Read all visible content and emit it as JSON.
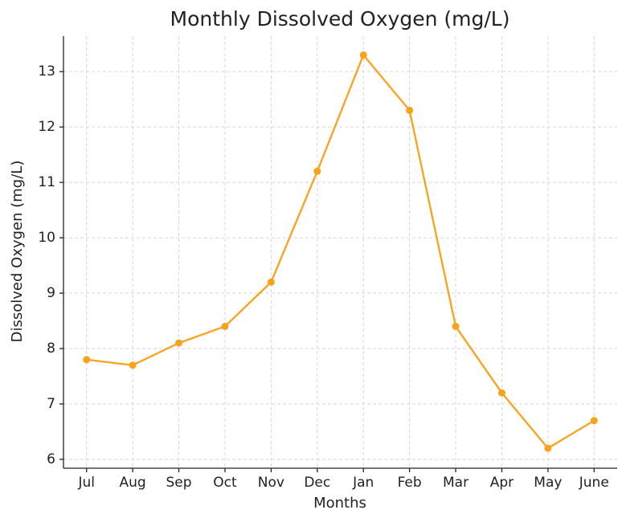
{
  "chart_data": {
    "type": "line",
    "title": "Monthly Dissolved Oxygen (mg/L)",
    "x_label": "Months",
    "y_label": "Dissolved Oxygen (mg/L)",
    "categories": [
      "Jul",
      "Aug",
      "Sep",
      "Oct",
      "Nov",
      "Dec",
      "Jan",
      "Feb",
      "Mar",
      "Apr",
      "May",
      "June"
    ],
    "values": [
      7.8,
      7.7,
      8.1,
      8.4,
      9.2,
      11.2,
      13.3,
      12.3,
      8.4,
      7.2,
      6.2,
      6.7
    ],
    "color": "#f9a21b",
    "ylim": [
      5.84,
      13.64
    ],
    "yticks": [
      6,
      7,
      8,
      9,
      10,
      11,
      12,
      13
    ],
    "grid": true
  }
}
